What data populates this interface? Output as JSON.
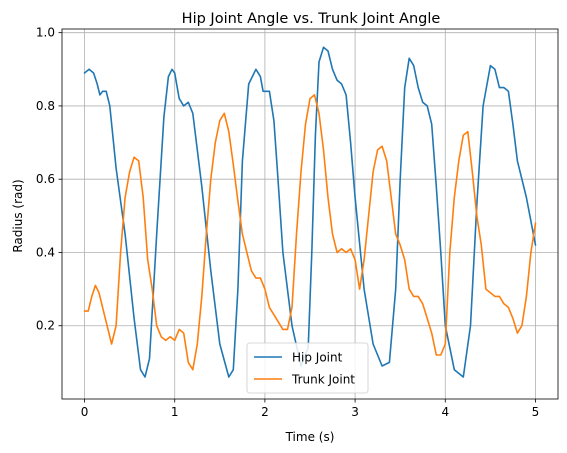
{
  "chart_data": {
    "type": "line",
    "title": "Hip Joint Angle vs. Trunk Joint Angle",
    "xlabel": "Time (s)",
    "ylabel": "Radius (rad)",
    "xlim": [
      -0.25,
      5.25
    ],
    "ylim": [
      0.0,
      1.01
    ],
    "xticks": [
      "0",
      "1",
      "2",
      "3",
      "4",
      "5"
    ],
    "yticks": [
      "0.2",
      "0.4",
      "0.6",
      "0.8",
      "1.0"
    ],
    "grid": true,
    "legend_position": "lower center",
    "series": [
      {
        "name": "Hip Joint",
        "color": "#1f77b4",
        "x": [
          0.0,
          0.05,
          0.1,
          0.14,
          0.17,
          0.2,
          0.24,
          0.28,
          0.35,
          0.45,
          0.55,
          0.62,
          0.67,
          0.72,
          0.8,
          0.88,
          0.93,
          0.97,
          1.0,
          1.05,
          1.1,
          1.15,
          1.2,
          1.3,
          1.4,
          1.5,
          1.6,
          1.65,
          1.7,
          1.75,
          1.82,
          1.9,
          1.95,
          1.98,
          2.01,
          2.05,
          2.1,
          2.14,
          2.2,
          2.3,
          2.4,
          2.48,
          2.52,
          2.56,
          2.6,
          2.65,
          2.7,
          2.75,
          2.8,
          2.85,
          2.9,
          2.95,
          3.0,
          3.1,
          3.2,
          3.3,
          3.38,
          3.45,
          3.5,
          3.55,
          3.6,
          3.65,
          3.7,
          3.75,
          3.8,
          3.85,
          3.9,
          3.95,
          4.0,
          4.1,
          4.2,
          4.28,
          4.35,
          4.42,
          4.5,
          4.55,
          4.6,
          4.65,
          4.7,
          4.75,
          4.8,
          4.9,
          5.0
        ],
        "y": [
          0.89,
          0.9,
          0.89,
          0.86,
          0.83,
          0.84,
          0.84,
          0.8,
          0.63,
          0.45,
          0.22,
          0.08,
          0.06,
          0.11,
          0.45,
          0.77,
          0.88,
          0.9,
          0.89,
          0.82,
          0.8,
          0.81,
          0.78,
          0.58,
          0.35,
          0.15,
          0.06,
          0.08,
          0.3,
          0.65,
          0.86,
          0.9,
          0.88,
          0.84,
          0.84,
          0.84,
          0.76,
          0.62,
          0.4,
          0.2,
          0.09,
          0.14,
          0.4,
          0.72,
          0.92,
          0.96,
          0.95,
          0.9,
          0.87,
          0.86,
          0.83,
          0.7,
          0.55,
          0.3,
          0.15,
          0.09,
          0.1,
          0.3,
          0.6,
          0.85,
          0.93,
          0.91,
          0.85,
          0.81,
          0.8,
          0.75,
          0.58,
          0.4,
          0.2,
          0.08,
          0.06,
          0.2,
          0.53,
          0.8,
          0.91,
          0.9,
          0.85,
          0.85,
          0.84,
          0.75,
          0.65,
          0.55,
          0.42
        ]
      },
      {
        "name": "Trunk Joint",
        "color": "#ff7f0e",
        "x": [
          0.0,
          0.04,
          0.08,
          0.12,
          0.16,
          0.2,
          0.25,
          0.3,
          0.35,
          0.4,
          0.45,
          0.5,
          0.55,
          0.6,
          0.65,
          0.7,
          0.75,
          0.8,
          0.85,
          0.9,
          0.95,
          1.0,
          1.05,
          1.1,
          1.15,
          1.2,
          1.25,
          1.3,
          1.35,
          1.4,
          1.45,
          1.5,
          1.55,
          1.6,
          1.65,
          1.7,
          1.75,
          1.8,
          1.85,
          1.9,
          1.95,
          2.0,
          2.05,
          2.1,
          2.15,
          2.2,
          2.25,
          2.3,
          2.35,
          2.4,
          2.45,
          2.5,
          2.55,
          2.6,
          2.65,
          2.7,
          2.75,
          2.8,
          2.85,
          2.9,
          2.95,
          3.0,
          3.05,
          3.1,
          3.15,
          3.2,
          3.25,
          3.3,
          3.35,
          3.4,
          3.45,
          3.5,
          3.55,
          3.6,
          3.65,
          3.7,
          3.75,
          3.8,
          3.85,
          3.9,
          3.95,
          4.0,
          4.05,
          4.1,
          4.15,
          4.2,
          4.25,
          4.3,
          4.35,
          4.4,
          4.45,
          4.5,
          4.55,
          4.6,
          4.65,
          4.7,
          4.75,
          4.8,
          4.85,
          4.9,
          4.95,
          5.0
        ],
        "y": [
          0.24,
          0.24,
          0.28,
          0.31,
          0.29,
          0.25,
          0.2,
          0.15,
          0.2,
          0.4,
          0.55,
          0.62,
          0.66,
          0.65,
          0.55,
          0.38,
          0.3,
          0.2,
          0.17,
          0.16,
          0.17,
          0.16,
          0.19,
          0.18,
          0.1,
          0.08,
          0.15,
          0.28,
          0.45,
          0.6,
          0.7,
          0.76,
          0.78,
          0.73,
          0.64,
          0.54,
          0.45,
          0.4,
          0.35,
          0.33,
          0.33,
          0.3,
          0.25,
          0.23,
          0.21,
          0.19,
          0.19,
          0.25,
          0.45,
          0.62,
          0.75,
          0.82,
          0.83,
          0.78,
          0.68,
          0.55,
          0.45,
          0.4,
          0.41,
          0.4,
          0.41,
          0.38,
          0.3,
          0.38,
          0.5,
          0.62,
          0.68,
          0.69,
          0.65,
          0.55,
          0.45,
          0.42,
          0.38,
          0.3,
          0.28,
          0.28,
          0.26,
          0.22,
          0.18,
          0.12,
          0.12,
          0.15,
          0.4,
          0.55,
          0.65,
          0.72,
          0.73,
          0.62,
          0.5,
          0.42,
          0.3,
          0.29,
          0.28,
          0.28,
          0.26,
          0.25,
          0.22,
          0.18,
          0.2,
          0.28,
          0.4,
          0.48
        ]
      }
    ]
  }
}
